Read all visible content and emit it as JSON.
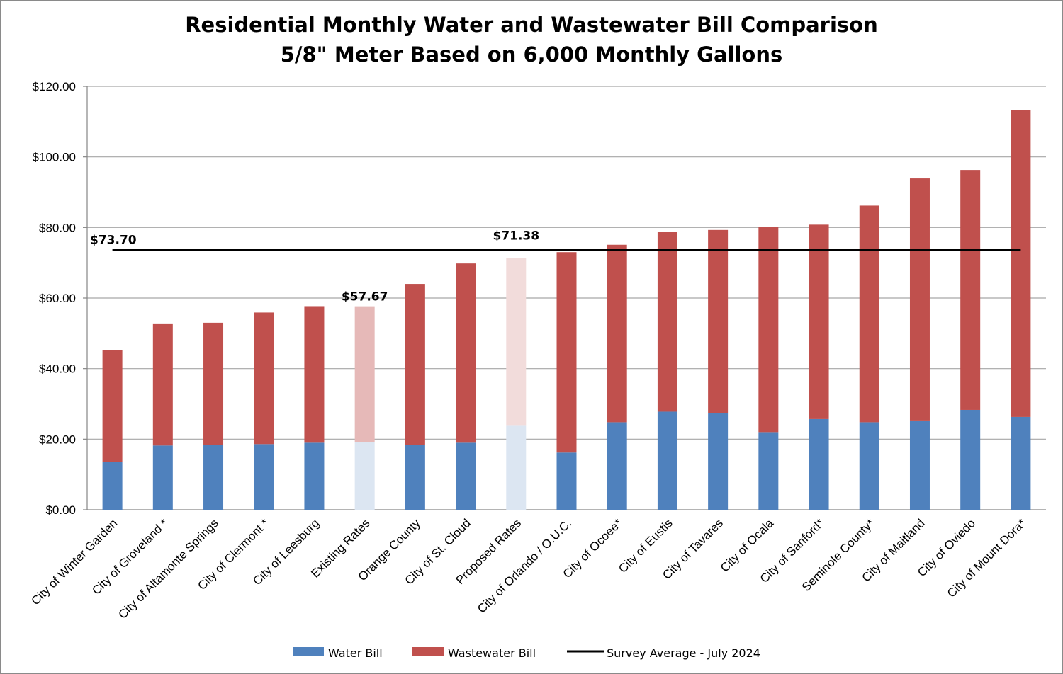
{
  "chart_data": {
    "type": "bar",
    "stacked": true,
    "title": "Residential Monthly Water and Wastewater Bill Comparison",
    "subtitle": "5/8\" Meter Based on 6,000 Monthly Gallons",
    "ylim": [
      0,
      120
    ],
    "yticks": [
      "$0.00",
      "$20.00",
      "$40.00",
      "$60.00",
      "$80.00",
      "$100.00",
      "$120.00"
    ],
    "ytick_values": [
      0,
      20,
      40,
      60,
      80,
      100,
      120
    ],
    "grid": true,
    "categories": [
      "City of Winter Garden",
      "City of Groveland *",
      "City of Altamonte Springs",
      "City of Clermont *",
      "City of Leesburg",
      "Existing Rates",
      "Orange County",
      "City of St. Cloud",
      "Proposed Rates",
      "City of Orlando / O.U.C.",
      "City of Ocoee*",
      "City of Eustis",
      "City of Tavares",
      "City of Ocala",
      "City of Sanford*",
      "Seminole County*",
      "City of Maitland",
      "City of Oviedo",
      "City of Mount Dora*"
    ],
    "highlighted": [
      "Existing Rates",
      "Proposed Rates"
    ],
    "series": [
      {
        "name": "Water Bill",
        "color": "#4f81bd",
        "highlight_colors": {
          "Existing Rates": "#dce6f2",
          "Proposed Rates": "#dce6f2"
        },
        "values": [
          13.5,
          18.2,
          18.4,
          18.6,
          19.0,
          19.2,
          18.4,
          19.0,
          23.8,
          16.2,
          24.8,
          27.8,
          27.3,
          22.0,
          25.7,
          24.8,
          25.3,
          28.3,
          26.3
        ]
      },
      {
        "name": "Wastewater Bill",
        "color": "#c0504d",
        "highlight_colors": {
          "Existing Rates": "#e6b9b8",
          "Proposed Rates": "#f2dcdb"
        },
        "values": [
          31.7,
          34.6,
          34.6,
          37.3,
          38.7,
          38.47,
          45.6,
          50.8,
          47.58,
          56.8,
          50.3,
          50.9,
          52.0,
          58.2,
          55.1,
          61.4,
          68.6,
          68.0,
          86.9
        ]
      }
    ],
    "reference_line": {
      "name": "Survey Average - July 2024",
      "value": 73.7,
      "color": "#000000"
    },
    "annotations": [
      "$73.70",
      "$57.67",
      "$71.38"
    ],
    "legend": "bottom"
  }
}
